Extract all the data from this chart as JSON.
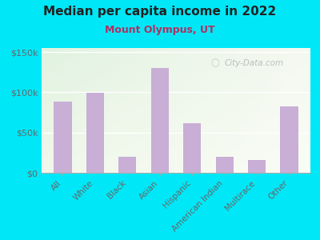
{
  "title": "Median per capita income in 2022",
  "subtitle": "Mount Olympus, UT",
  "categories": [
    "All",
    "White",
    "Black",
    "Asian",
    "Hispanic",
    "American Indian",
    "Multirace",
    "Other"
  ],
  "values": [
    88000,
    99000,
    20000,
    130000,
    62000,
    20000,
    16000,
    82000
  ],
  "bar_color": "#c9aed6",
  "background_outer": "#00e8f8",
  "title_color": "#222222",
  "subtitle_color": "#b03060",
  "tick_label_color": "#666666",
  "ytick_labels": [
    "$0",
    "$50k",
    "$100k",
    "$150k"
  ],
  "ytick_values": [
    0,
    50000,
    100000,
    150000
  ],
  "ylim": [
    0,
    155000
  ],
  "watermark": "City-Data.com",
  "bg_topleft": [
    0.878,
    0.949,
    0.878
  ],
  "bg_topright": [
    0.961,
    0.973,
    0.941
  ],
  "bg_botleft": [
    0.941,
    0.969,
    0.918
  ],
  "bg_botright": [
    0.98,
    0.988,
    0.965
  ]
}
